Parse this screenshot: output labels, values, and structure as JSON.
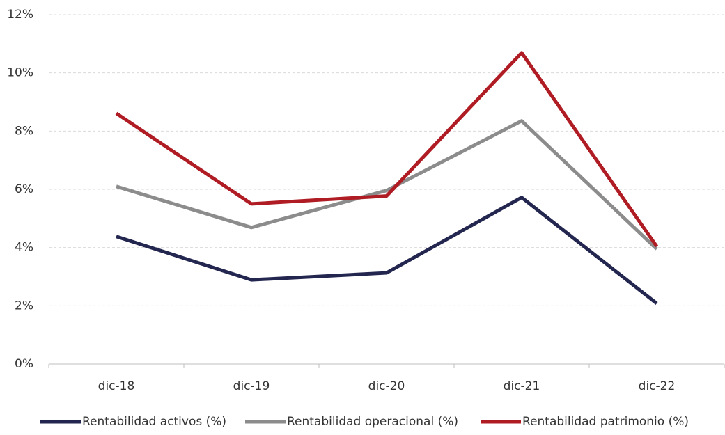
{
  "chart_data": {
    "type": "line",
    "categories": [
      "dic-18",
      "dic-19",
      "dic-20",
      "dic-21",
      "dic-22"
    ],
    "series": [
      {
        "name": "Rentabilidad activos (%)",
        "color": "#23264f",
        "values": [
          4.38,
          2.89,
          3.13,
          5.72,
          2.08
        ]
      },
      {
        "name": "Rentabilidad operacional (%)",
        "color": "#8c8c8c",
        "values": [
          6.1,
          4.69,
          5.96,
          8.35,
          3.95
        ]
      },
      {
        "name": "Rentabilidad patrimonio (%)",
        "color": "#b01c24",
        "values": [
          8.61,
          5.5,
          5.77,
          10.69,
          4.04
        ]
      }
    ],
    "ylim": [
      0,
      12
    ],
    "yticks": [
      {
        "value": 0,
        "label": "0%"
      },
      {
        "value": 2,
        "label": "2%"
      },
      {
        "value": 4,
        "label": "4%"
      },
      {
        "value": 6,
        "label": "6%"
      },
      {
        "value": 8,
        "label": "8%"
      },
      {
        "value": 10,
        "label": "10%"
      },
      {
        "value": 12,
        "label": "12%"
      }
    ],
    "grid": true,
    "legend": "bottom"
  }
}
